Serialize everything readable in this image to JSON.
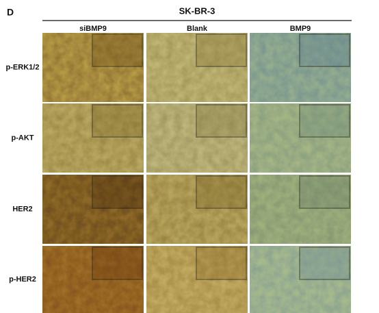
{
  "panel_label": "D",
  "header": {
    "title": "SK-BR-3",
    "columns": [
      "siBMP9",
      "Blank",
      "BMP9"
    ]
  },
  "rows": [
    {
      "label": "p-ERK1/2"
    },
    {
      "label": "p-AKT"
    },
    {
      "label": "HER2"
    },
    {
      "label": "p-HER2"
    }
  ]
}
